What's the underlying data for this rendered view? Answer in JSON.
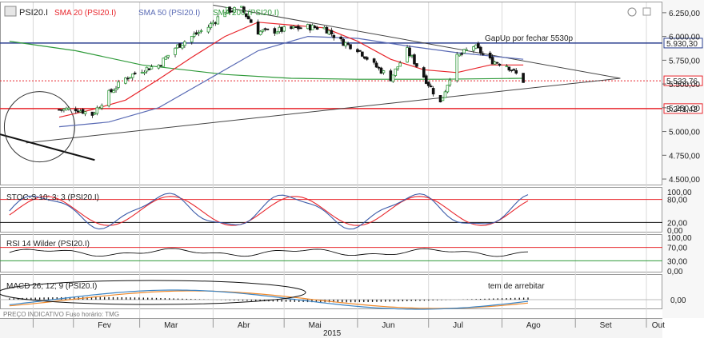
{
  "main": {
    "symbol": "PSI20.I",
    "legend": [
      {
        "label": "SMA 20 (PSI20.I)",
        "color": "#e8262c"
      },
      {
        "label": "SMA 50 (PSI20.I)",
        "color": "#5a6bb5"
      },
      {
        "label": "SMA 200 (PSI20.I)",
        "color": "#2f9a3a"
      }
    ],
    "annotation_gap": "GapUp por fechar 5530p",
    "price_labels": [
      "5.930,30",
      "5.533,76",
      "5.241,42"
    ],
    "axis_ticks": [
      "6.250,00",
      "6.000,00",
      "5.750,00",
      "5.500,00",
      "5.250,00",
      "5.000,00",
      "4.750,00",
      "4.500,00"
    ]
  },
  "stoch": {
    "title": "STOC-S 10; 3; 3 (PSI20.I)",
    "axis_ticks": [
      "100,00",
      "80,00",
      "20,00",
      "0,00"
    ]
  },
  "rsi": {
    "title": "RSI 14 Wilder (PSI20.I)",
    "axis_ticks": [
      "100,00",
      "70,00",
      "30,00",
      "0,00"
    ]
  },
  "macd": {
    "title": "MACD 26; 12; 9 (PSI20.I)",
    "annotation": "tem de arrebitar",
    "axis_ticks": [
      "0,00"
    ]
  },
  "footer": {
    "source_note": "PREÇO INDICATIVO   Fuso horário: TMG",
    "months": [
      "Fev",
      "Mar",
      "Abr",
      "Mai",
      "Jun",
      "Jul",
      "Ago",
      "Set",
      "Out"
    ],
    "year": "2015"
  },
  "chart_data": {
    "type": "candlestick",
    "instrument": "PSI20.I",
    "x_period": {
      "from": "2015-01",
      "to": "2015-10"
    },
    "ylim": [
      4450,
      6350
    ],
    "horizontal_levels": [
      5930.3,
      5533.76,
      5241.42
    ],
    "close_series": [
      {
        "date": "2015-01-26",
        "value": 5230
      },
      {
        "date": "2015-02-02",
        "value": 5240
      },
      {
        "date": "2015-02-09",
        "value": 5180
      },
      {
        "date": "2015-02-16",
        "value": 5400
      },
      {
        "date": "2015-02-23",
        "value": 5560
      },
      {
        "date": "2015-03-02",
        "value": 5650
      },
      {
        "date": "2015-03-09",
        "value": 5700
      },
      {
        "date": "2015-03-16",
        "value": 5880
      },
      {
        "date": "2015-03-23",
        "value": 6000
      },
      {
        "date": "2015-03-30",
        "value": 6100
      },
      {
        "date": "2015-04-06",
        "value": 6270
      },
      {
        "date": "2015-04-13",
        "value": 6290
      },
      {
        "date": "2015-04-20",
        "value": 6050
      },
      {
        "date": "2015-04-27",
        "value": 6060
      },
      {
        "date": "2015-05-04",
        "value": 6080
      },
      {
        "date": "2015-05-11",
        "value": 6100
      },
      {
        "date": "2015-05-18",
        "value": 6090
      },
      {
        "date": "2015-05-25",
        "value": 5950
      },
      {
        "date": "2015-06-01",
        "value": 5870
      },
      {
        "date": "2015-06-08",
        "value": 5700
      },
      {
        "date": "2015-06-15",
        "value": 5560
      },
      {
        "date": "2015-06-22",
        "value": 5850
      },
      {
        "date": "2015-06-29",
        "value": 5580
      },
      {
        "date": "2015-07-06",
        "value": 5300
      },
      {
        "date": "2015-07-13",
        "value": 5780
      },
      {
        "date": "2015-07-20",
        "value": 5900
      },
      {
        "date": "2015-07-27",
        "value": 5750
      },
      {
        "date": "2015-08-03",
        "value": 5700
      },
      {
        "date": "2015-08-10",
        "value": 5533
      }
    ],
    "sma20": [
      {
        "date": "2015-01-26",
        "value": 5150
      },
      {
        "date": "2015-02-09",
        "value": 5230
      },
      {
        "date": "2015-02-23",
        "value": 5330
      },
      {
        "date": "2015-03-09",
        "value": 5550
      },
      {
        "date": "2015-03-23",
        "value": 5780
      },
      {
        "date": "2015-04-06",
        "value": 6000
      },
      {
        "date": "2015-04-20",
        "value": 6150
      },
      {
        "date": "2015-05-04",
        "value": 6120
      },
      {
        "date": "2015-05-18",
        "value": 6090
      },
      {
        "date": "2015-06-01",
        "value": 5950
      },
      {
        "date": "2015-06-15",
        "value": 5760
      },
      {
        "date": "2015-06-29",
        "value": 5650
      },
      {
        "date": "2015-07-13",
        "value": 5620
      },
      {
        "date": "2015-07-27",
        "value": 5700
      },
      {
        "date": "2015-08-10",
        "value": 5700
      }
    ],
    "sma50": [
      {
        "date": "2015-01-26",
        "value": 5050
      },
      {
        "date": "2015-02-16",
        "value": 5100
      },
      {
        "date": "2015-03-09",
        "value": 5250
      },
      {
        "date": "2015-03-30",
        "value": 5550
      },
      {
        "date": "2015-04-20",
        "value": 5850
      },
      {
        "date": "2015-05-11",
        "value": 6000
      },
      {
        "date": "2015-06-01",
        "value": 5980
      },
      {
        "date": "2015-06-22",
        "value": 5900
      },
      {
        "date": "2015-07-13",
        "value": 5830
      },
      {
        "date": "2015-08-10",
        "value": 5760
      }
    ],
    "sma200": [
      {
        "date": "2015-01-05",
        "value": 5950
      },
      {
        "date": "2015-02-02",
        "value": 5850
      },
      {
        "date": "2015-03-02",
        "value": 5700
      },
      {
        "date": "2015-04-06",
        "value": 5600
      },
      {
        "date": "2015-05-04",
        "value": 5560
      },
      {
        "date": "2015-06-01",
        "value": 5550
      },
      {
        "date": "2015-07-06",
        "value": 5550
      },
      {
        "date": "2015-08-10",
        "value": 5560
      }
    ],
    "stochastic": {
      "upper_band": 80,
      "lower_band": 20,
      "ylim": [
        0,
        100
      ]
    },
    "rsi": {
      "upper_band": 70,
      "lower_band": 30,
      "ylim": [
        0,
        100
      ]
    },
    "macd": {
      "zero_line": 0
    }
  }
}
